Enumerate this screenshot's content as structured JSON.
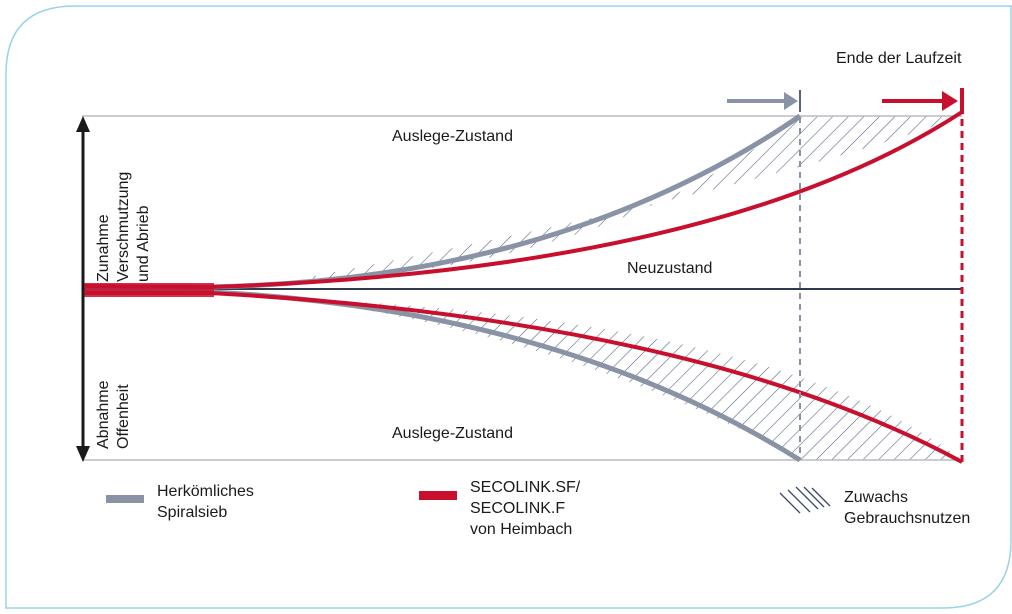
{
  "title": "Ende der Laufzeit",
  "labels": {
    "top_state": "Auslege-Zustand",
    "bottom_state": "Auslege-Zustand",
    "new_state": "Neuzustand"
  },
  "axis": {
    "upper": [
      "Zunahme",
      "Verschmutzung",
      "und Abrieb"
    ],
    "lower": [
      "Abnahme",
      "Offenheit"
    ]
  },
  "legend": {
    "conventional": [
      "Herkömliches",
      "Spiralsieb"
    ],
    "secolink": [
      "SECOLINK.SF/",
      "SECOLINK.F",
      "von Heimbach"
    ],
    "gain": [
      "Zuwachs",
      "Gebrauchsnutzen"
    ]
  },
  "colors": {
    "gray": "#8a93a6",
    "red": "#c8102e",
    "frame": "#9ad3e6",
    "axis": "#1a1a1a",
    "baseline": "#2f3a4f",
    "hatch": "#3c4a6e"
  }
}
